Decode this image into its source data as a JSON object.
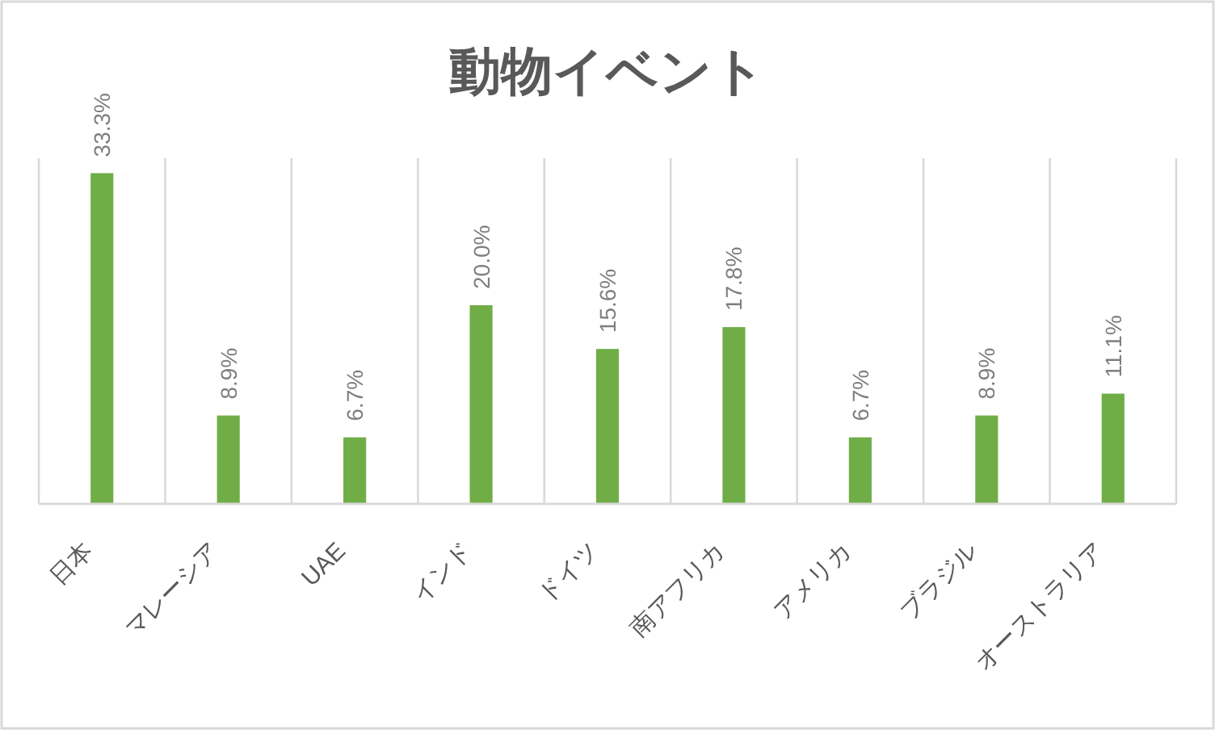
{
  "chart_data": {
    "type": "bar",
    "title": "動物イベント",
    "categories": [
      "日本",
      "マレーシア",
      "UAE",
      "インド",
      "ドイツ",
      "南アフリカ",
      "アメリカ",
      "ブラジル",
      "オーストラリア"
    ],
    "values": [
      33.3,
      8.9,
      6.7,
      20.0,
      15.6,
      17.8,
      6.7,
      8.9,
      11.1
    ],
    "value_labels": [
      "33.3%",
      "8.9%",
      "6.7%",
      "20.0%",
      "15.6%",
      "17.8%",
      "6.7%",
      "8.9%",
      "11.1%"
    ],
    "color": "#70ad47",
    "grid": "x"
  }
}
